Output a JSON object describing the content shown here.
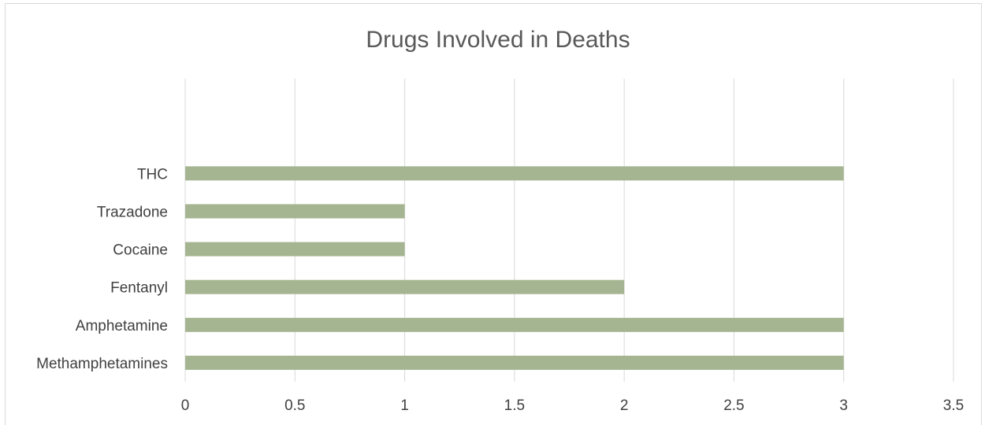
{
  "chart_data": {
    "type": "bar",
    "orientation": "horizontal",
    "title": "Drugs Involved in Deaths",
    "xlabel": "",
    "ylabel": "",
    "categories": [
      "Methamphetamines",
      "Amphetamine",
      "Fentanyl",
      "Cocaine",
      "Trazadone",
      "THC"
    ],
    "values": [
      3,
      3,
      2,
      1,
      1,
      3
    ],
    "xlim": [
      0,
      3.5
    ],
    "x_ticks": [
      "0",
      "0.5",
      "1",
      "1.5",
      "2",
      "2.5",
      "3",
      "3.5"
    ],
    "grid": true,
    "legend": "none",
    "bar_color": "#a5b592"
  }
}
